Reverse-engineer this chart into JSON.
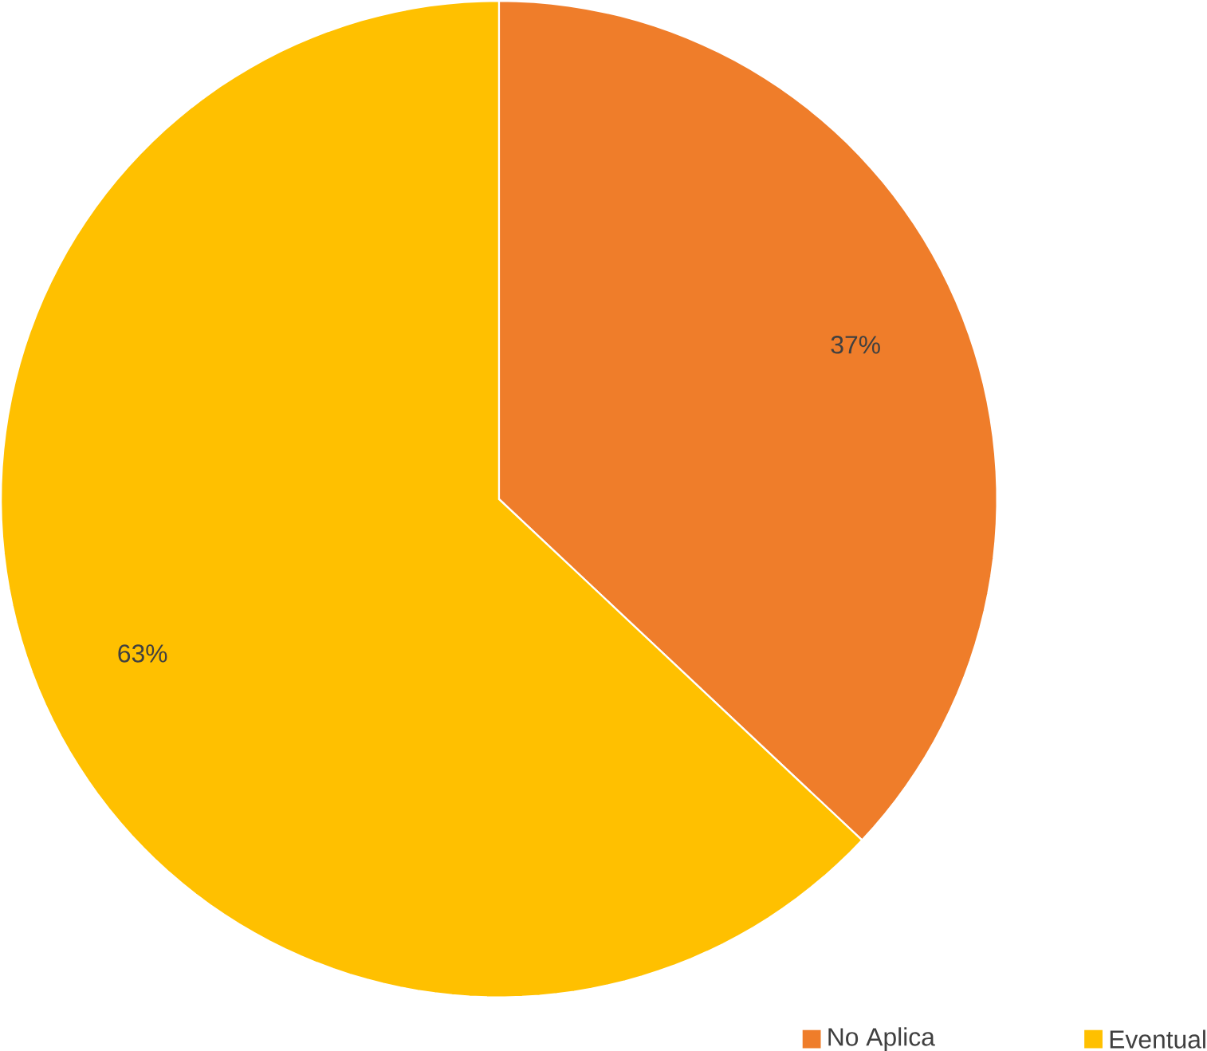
{
  "chart_data": {
    "type": "pie",
    "categories": [
      "No Aplica",
      "Eventual"
    ],
    "values": [
      37,
      63
    ],
    "colors": [
      "#ef7d2a",
      "#ffc000"
    ],
    "value_labels": [
      "37%",
      "63%"
    ],
    "legend": "bottom right"
  }
}
